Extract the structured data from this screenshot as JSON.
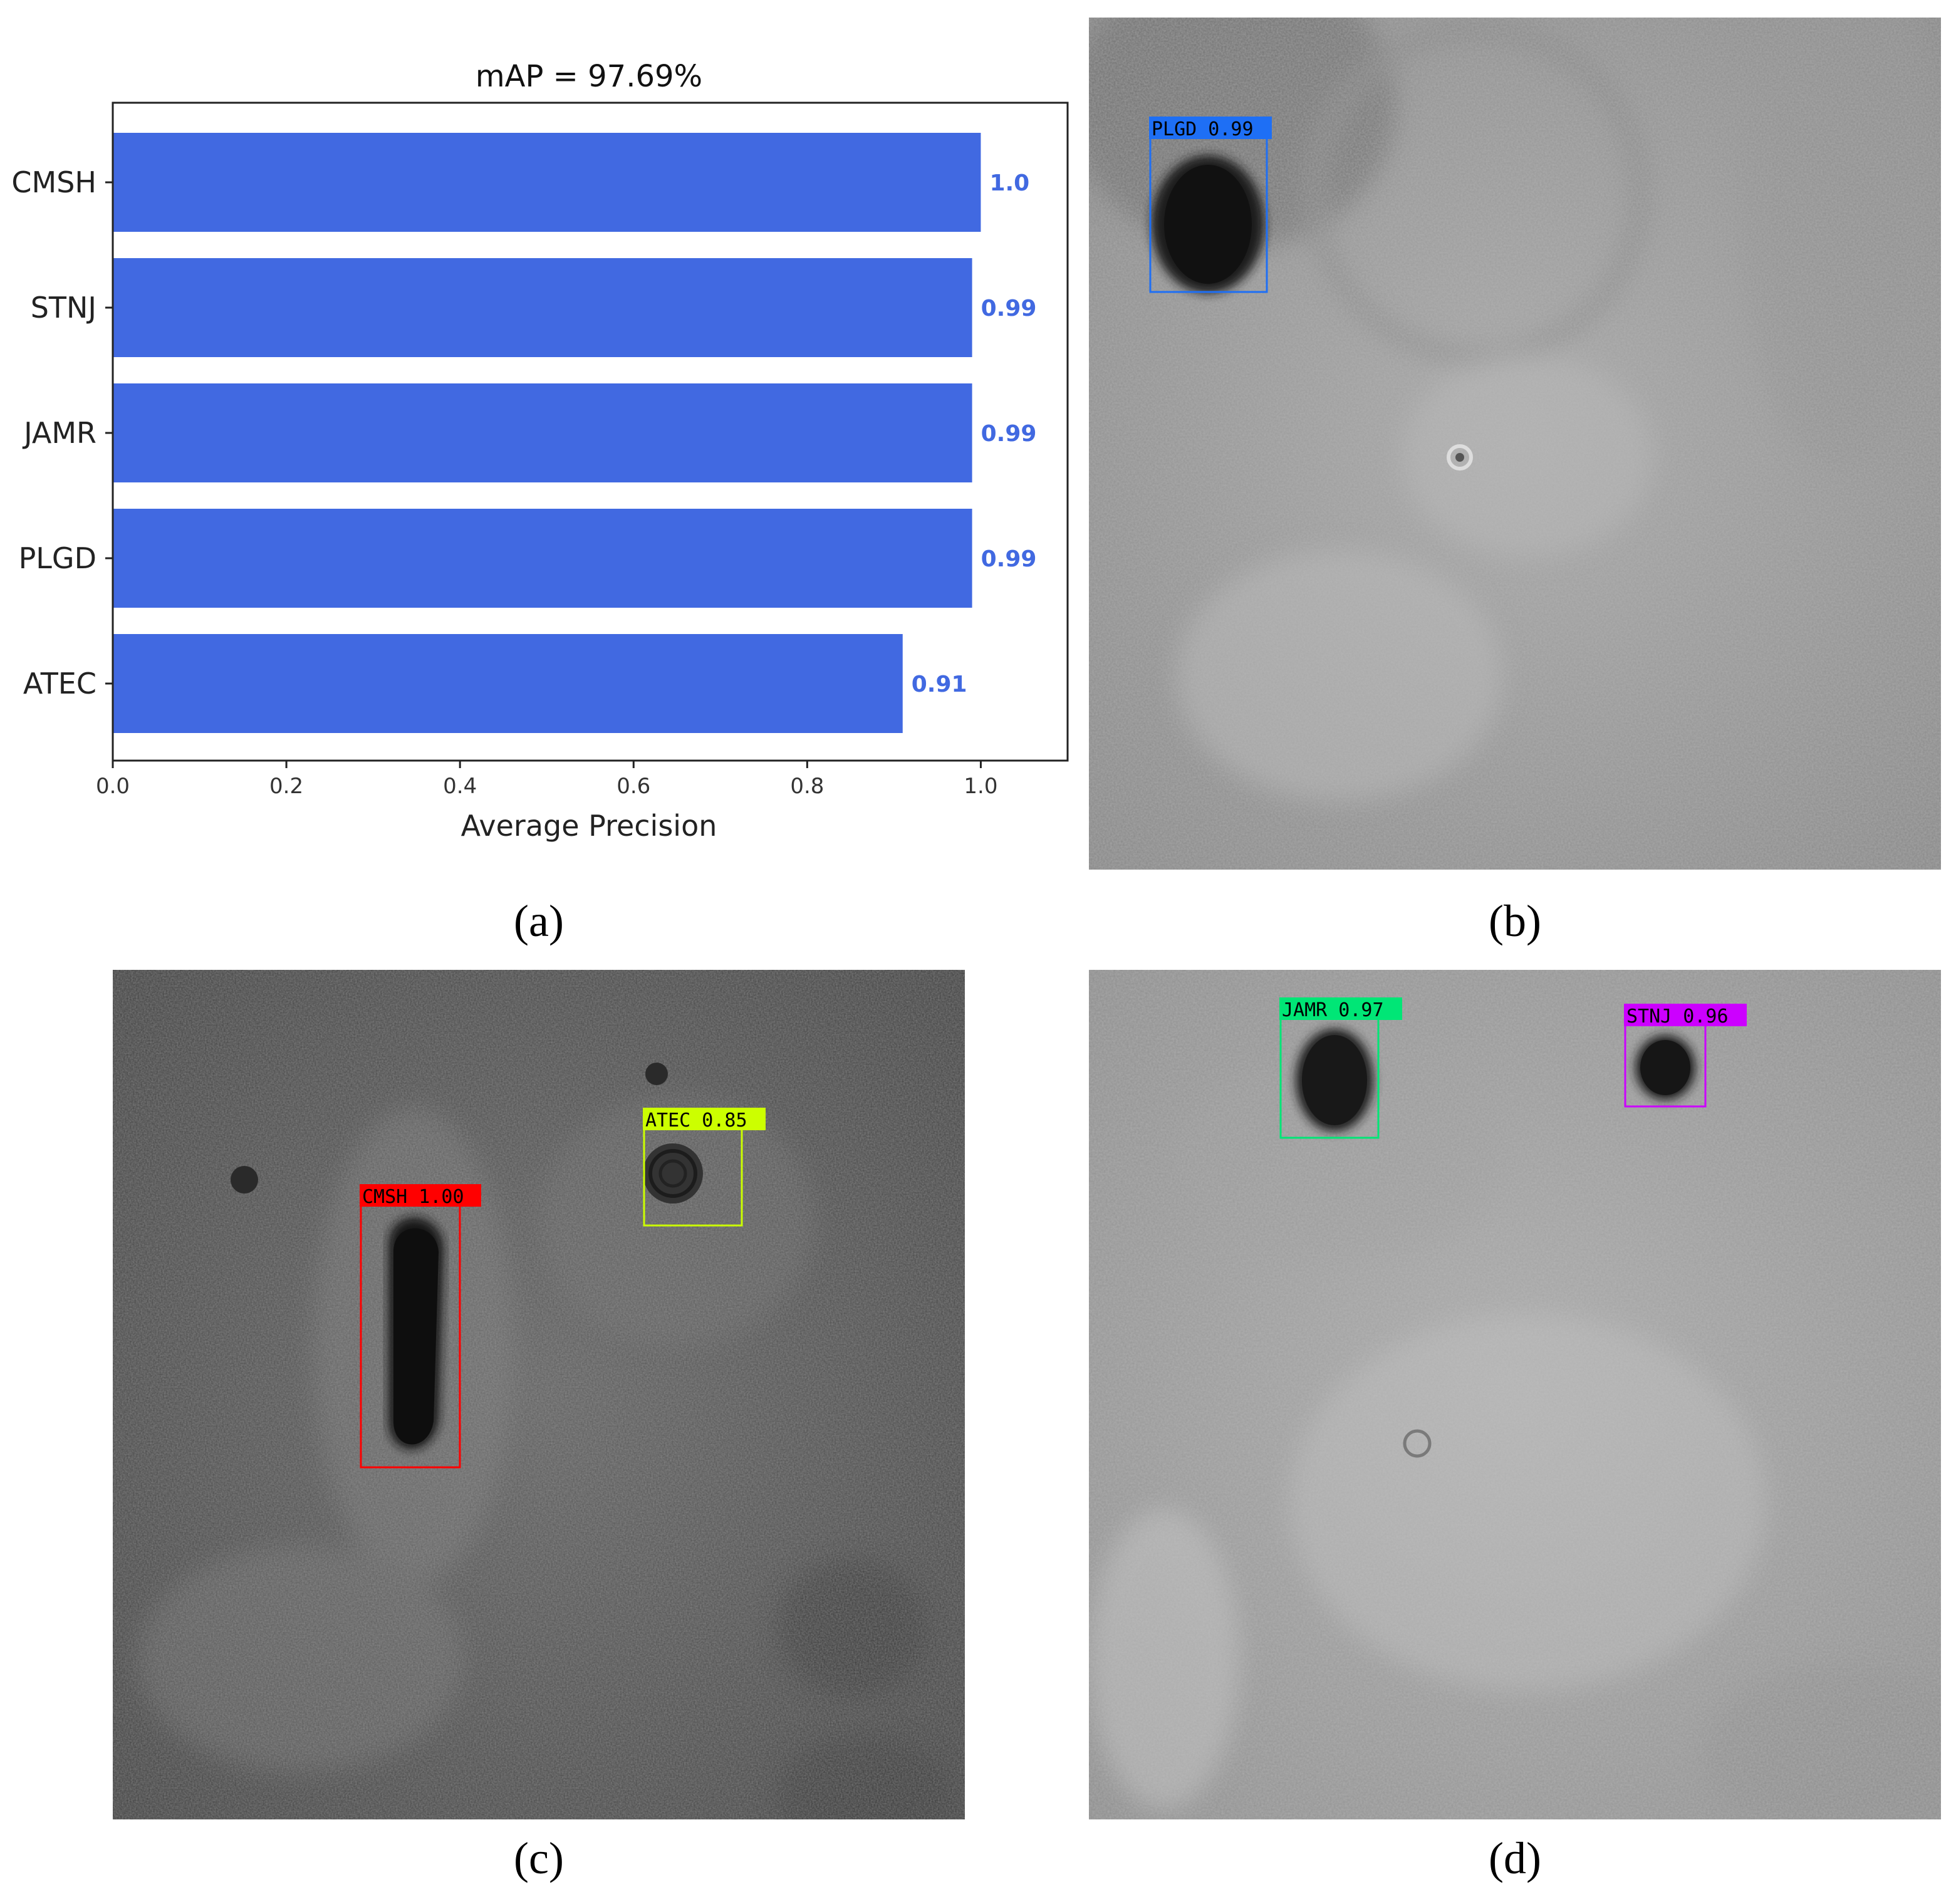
{
  "chart_data": {
    "type": "bar",
    "orientation": "horizontal",
    "title": "mAP = 97.69%",
    "xlabel": "Average Precision",
    "ylabel": "",
    "categories": [
      "CMSH",
      "STNJ",
      "JAMR",
      "PLGD",
      "ATEC"
    ],
    "values": [
      1.0,
      0.99,
      0.99,
      0.99,
      0.91
    ],
    "value_labels": [
      "1.0",
      "0.99",
      "0.99",
      "0.99",
      "0.91"
    ],
    "xlim": [
      0,
      1.1
    ],
    "xticks": [
      0.0,
      0.2,
      0.4,
      0.6,
      0.8,
      1.0
    ],
    "xtick_labels": [
      "0.0",
      "0.2",
      "0.4",
      "0.6",
      "0.8",
      "1.0"
    ],
    "grid": false,
    "bar_color": "#4169e1",
    "label_color": "#4169e1"
  },
  "captions": {
    "a": "(a)",
    "b": "(b)",
    "c": "(c)",
    "d": "(d)"
  },
  "detections": {
    "b": [
      {
        "label": "PLGD 0.99",
        "color": "#1e6ff5",
        "text_color": "#000000"
      }
    ],
    "c": [
      {
        "label": "CMSH 1.00",
        "color": "#ff0000",
        "text_color": "#000000"
      },
      {
        "label": "ATEC 0.85",
        "color": "#ccff00",
        "text_color": "#000000"
      }
    ],
    "d": [
      {
        "label": "JAMR 0.97",
        "color": "#00e676",
        "text_color": "#000000"
      },
      {
        "label": "STNJ 0.96",
        "color": "#cc00ff",
        "text_color": "#000000"
      }
    ]
  }
}
